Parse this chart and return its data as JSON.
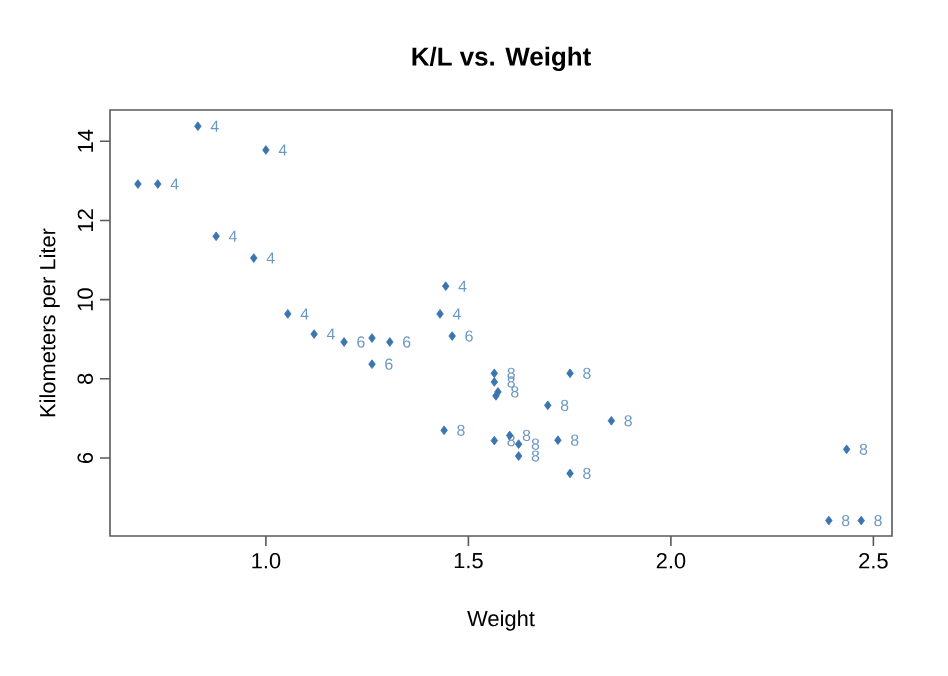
{
  "chart_data": {
    "type": "scatter",
    "title": "K/L vs. Weight",
    "xlabel": "Weight",
    "ylabel": "Kilometers per Liter",
    "xlim": [
      0.615,
      2.546
    ],
    "ylim": [
      4.03,
      14.79
    ],
    "xticks": [
      {
        "value": 1,
        "label": "1.0"
      },
      {
        "value": 1.5,
        "label": "1.5"
      },
      {
        "value": 2,
        "label": "2.0"
      },
      {
        "value": 2.5,
        "label": "2.5"
      }
    ],
    "yticks": [
      6,
      8,
      10,
      12,
      14
    ],
    "marker": "diamond",
    "grid": false,
    "series": [
      {
        "color": "#3a75b0",
        "x": [
          0.684,
          0.733,
          0.832,
          1.0,
          0.877,
          0.97,
          1.054,
          1.119,
          1.193,
          1.262,
          1.306,
          1.262,
          1.444,
          1.43,
          1.46,
          1.44,
          1.564,
          1.564,
          1.573,
          1.568,
          1.751,
          1.696,
          1.853,
          1.564,
          1.602,
          1.624,
          1.624,
          1.721,
          1.751,
          2.434,
          2.39,
          2.47
        ],
        "values": [
          12.92,
          12.92,
          14.38,
          13.78,
          11.6,
          11.05,
          9.64,
          9.13,
          8.93,
          9.03,
          8.93,
          8.37,
          10.34,
          9.64,
          9.08,
          6.7,
          8.14,
          7.92,
          7.67,
          7.57,
          8.14,
          7.33,
          6.94,
          6.44,
          6.57,
          6.35,
          6.05,
          6.45,
          5.61,
          6.22,
          4.42,
          4.42
        ]
      }
    ],
    "annotations": [
      {
        "text": "4",
        "x": 0.733,
        "y": 12.92
      },
      {
        "text": "4",
        "x": 0.832,
        "y": 14.38
      },
      {
        "text": "4",
        "x": 1.0,
        "y": 13.78
      },
      {
        "text": "4",
        "x": 0.877,
        "y": 11.6
      },
      {
        "text": "4",
        "x": 0.97,
        "y": 11.05
      },
      {
        "text": "4",
        "x": 1.054,
        "y": 9.64
      },
      {
        "text": "4",
        "x": 1.119,
        "y": 9.13
      },
      {
        "text": "6",
        "x": 1.193,
        "y": 8.93
      },
      {
        "text": "6",
        "x": 1.306,
        "y": 8.93
      },
      {
        "text": "6",
        "x": 1.262,
        "y": 8.37
      },
      {
        "text": "4",
        "x": 1.444,
        "y": 10.34
      },
      {
        "text": "4",
        "x": 1.43,
        "y": 9.64
      },
      {
        "text": "6",
        "x": 1.46,
        "y": 9.08
      },
      {
        "text": "8",
        "x": 1.44,
        "y": 6.7
      },
      {
        "text": "8",
        "x": 1.564,
        "y": 8.14
      },
      {
        "text": "8",
        "x": 1.564,
        "y": 7.92
      },
      {
        "text": "8",
        "x": 1.573,
        "y": 7.67
      },
      {
        "text": "8",
        "x": 1.751,
        "y": 8.14
      },
      {
        "text": "8",
        "x": 1.696,
        "y": 7.33
      },
      {
        "text": "8",
        "x": 1.853,
        "y": 6.94
      },
      {
        "text": "8",
        "x": 1.564,
        "y": 6.44
      },
      {
        "text": "8",
        "x": 1.602,
        "y": 6.57
      },
      {
        "text": "8",
        "x": 1.624,
        "y": 6.35
      },
      {
        "text": "8",
        "x": 1.624,
        "y": 6.05
      },
      {
        "text": "8",
        "x": 1.721,
        "y": 6.45
      },
      {
        "text": "8",
        "x": 1.751,
        "y": 5.61
      },
      {
        "text": "8",
        "x": 2.434,
        "y": 6.22
      },
      {
        "text": "8",
        "x": 2.39,
        "y": 4.42
      },
      {
        "text": "8",
        "x": 2.47,
        "y": 4.42
      }
    ]
  }
}
